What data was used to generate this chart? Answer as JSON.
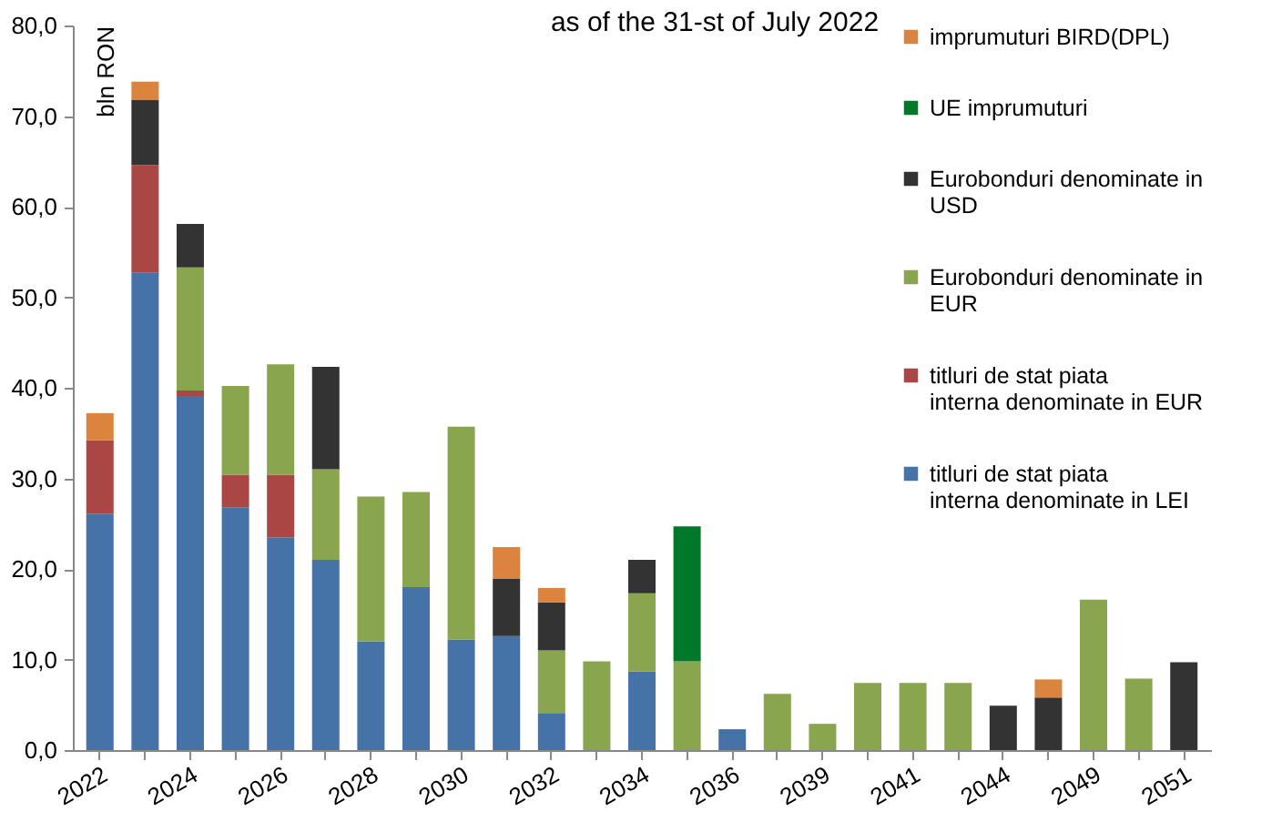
{
  "chart_data": {
    "type": "bar",
    "stacked": true,
    "title": "as of the 31-st of July 2022",
    "ylabel": "bln RON",
    "categories": [
      "2022",
      null,
      "2024",
      null,
      "2026",
      null,
      "2028",
      null,
      "2030",
      null,
      "2032",
      null,
      "2034",
      null,
      "2036",
      null,
      "2039",
      null,
      "2041",
      null,
      "2044",
      null,
      "2049",
      null,
      "2051"
    ],
    "series": [
      {
        "name": " titluri de stat piata interna denominate  in LEI",
        "color": "#4572a7",
        "values": [
          26.1,
          52.7,
          39.0,
          26.8,
          23.5,
          21.0,
          12.0,
          18.0,
          12.2,
          12.6,
          4.1,
          null,
          8.7,
          null,
          2.3,
          null,
          null,
          null,
          null,
          null,
          null,
          null,
          null,
          null,
          null
        ]
      },
      {
        "name": "titluri de stat piata interna denominate  in EUR",
        "color": "#aa4643",
        "values": [
          8.1,
          11.9,
          0.7,
          3.6,
          6.9,
          null,
          null,
          null,
          null,
          null,
          null,
          null,
          null,
          null,
          null,
          null,
          null,
          null,
          null,
          null,
          null,
          null,
          null,
          null,
          null
        ]
      },
      {
        "name": "Eurobonduri  denominate in EUR",
        "color": "#89a54e",
        "values": [
          null,
          null,
          13.6,
          9.8,
          12.2,
          10.0,
          16.0,
          10.5,
          23.5,
          null,
          6.9,
          9.8,
          8.6,
          9.8,
          null,
          6.2,
          2.9,
          7.4,
          7.4,
          7.4,
          null,
          null,
          16.6,
          7.9,
          null
        ]
      },
      {
        "name": "Eurobonduri denominate in USD",
        "color": "#333333",
        "values": [
          null,
          7.2,
          4.8,
          null,
          null,
          11.3,
          null,
          null,
          null,
          6.3,
          5.3,
          null,
          3.7,
          null,
          null,
          null,
          null,
          null,
          null,
          null,
          4.9,
          5.8,
          null,
          null,
          9.7
        ]
      },
      {
        "name": "UE imprumuturi",
        "color": "#00782a",
        "values": [
          null,
          null,
          null,
          null,
          null,
          null,
          null,
          null,
          null,
          null,
          null,
          null,
          null,
          14.9,
          null,
          null,
          null,
          null,
          null,
          null,
          null,
          null,
          null,
          null,
          null
        ]
      },
      {
        "name": "imprumuturi BIRD(DPL)",
        "color": "#db843d",
        "values": [
          3.0,
          2.0,
          null,
          null,
          null,
          null,
          null,
          null,
          null,
          3.5,
          1.6,
          null,
          null,
          null,
          null,
          null,
          null,
          null,
          null,
          null,
          null,
          2.0,
          null,
          null,
          null
        ]
      }
    ],
    "ylim": [
      0,
      80
    ],
    "yticks": [
      {
        "value": 0,
        "label": "0,0"
      },
      {
        "value": 10,
        "label": "10,0"
      },
      {
        "value": 20,
        "label": "20,0"
      },
      {
        "value": 30,
        "label": "30,0"
      },
      {
        "value": 40,
        "label": "40,0"
      },
      {
        "value": 50,
        "label": "50,0"
      },
      {
        "value": 60,
        "label": "60,0"
      },
      {
        "value": 70,
        "label": "70,0"
      },
      {
        "value": 80,
        "label": "80,0"
      }
    ],
    "grid": false,
    "legend": "top right"
  }
}
